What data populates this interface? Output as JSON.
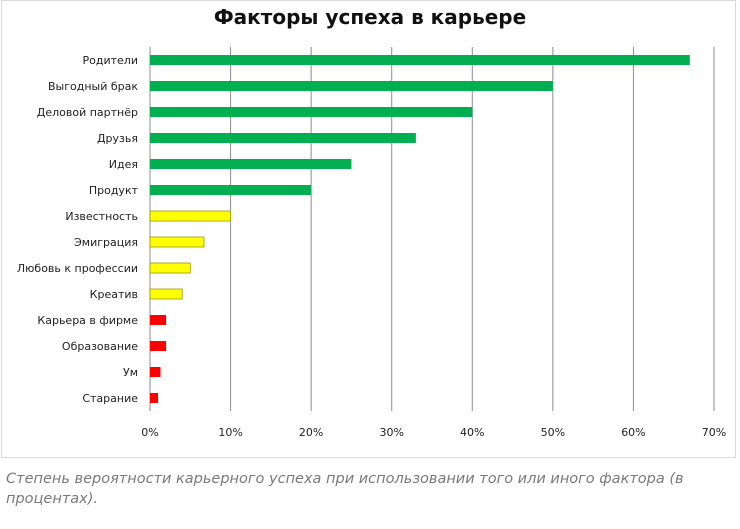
{
  "chart_data": {
    "type": "bar",
    "orientation": "horizontal",
    "title": "Факторы успеха в карьере",
    "categories": [
      "Родители",
      "Выгодный брак",
      "Деловой партнёр",
      "Друзья",
      "Идея",
      "Продукт",
      "Известность",
      "Эмиграция",
      "Любовь к профессии",
      "Креатив",
      "Карьера в фирме",
      "Образование",
      "Ум",
      "Старание"
    ],
    "values": [
      67,
      50,
      40,
      33,
      25,
      20,
      10,
      6.7,
      5,
      4,
      2,
      2,
      1.3,
      1
    ],
    "colors": [
      "#00b050",
      "#00b050",
      "#00b050",
      "#00b050",
      "#00b050",
      "#00b050",
      "#ffff00",
      "#ffff00",
      "#ffff00",
      "#ffff00",
      "#ff0000",
      "#ff0000",
      "#ff0000",
      "#ff0000"
    ],
    "xlim": [
      0,
      70
    ],
    "xticks": [
      0,
      10,
      20,
      30,
      40,
      50,
      60,
      70
    ],
    "xtick_suffix": "%",
    "grid": true,
    "legend": "none"
  },
  "caption": "Степень вероятности карьерного успеха при использовании того или иного фактора (в процентах)."
}
